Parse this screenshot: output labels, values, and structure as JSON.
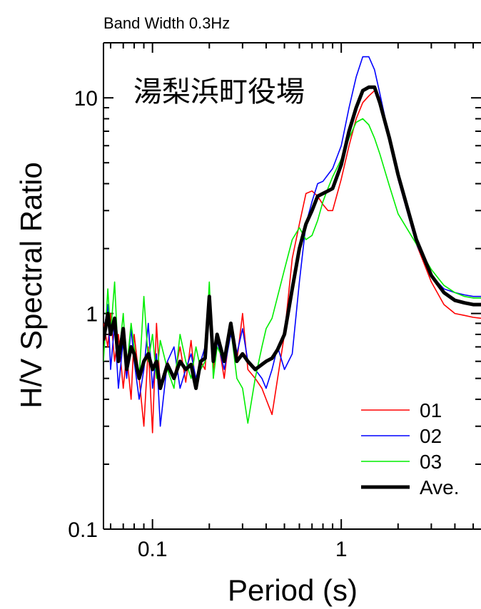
{
  "chart_data": {
    "type": "line",
    "subtitle": "Band Width 0.3Hz",
    "title": "湯梨浜町役場",
    "xlabel": "Period (s)",
    "ylabel": "H/V Spectral Ratio",
    "x_scale": "log",
    "y_scale": "log",
    "xlim": [
      0.055,
      5.5
    ],
    "ylim": [
      0.1,
      18
    ],
    "x_ticks": [
      0.1,
      1
    ],
    "x_tick_labels": [
      "0.1",
      "1"
    ],
    "y_ticks": [
      0.1,
      1,
      10
    ],
    "y_tick_labels": [
      "0.1",
      "1",
      "10"
    ],
    "grid": false,
    "legend": {
      "placement": "bottom-right"
    },
    "series": [
      {
        "name": "01",
        "color": "#ff0000",
        "x": [
          0.055,
          0.058,
          0.06,
          0.063,
          0.066,
          0.07,
          0.073,
          0.077,
          0.08,
          0.085,
          0.09,
          0.095,
          0.1,
          0.105,
          0.11,
          0.12,
          0.13,
          0.14,
          0.15,
          0.16,
          0.17,
          0.18,
          0.19,
          0.2,
          0.21,
          0.22,
          0.24,
          0.26,
          0.28,
          0.3,
          0.32,
          0.35,
          0.38,
          0.4,
          0.43,
          0.46,
          0.5,
          0.55,
          0.6,
          0.65,
          0.7,
          0.75,
          0.8,
          0.85,
          0.9,
          1.0,
          1.1,
          1.2,
          1.3,
          1.4,
          1.5,
          1.6,
          1.8,
          2.0,
          2.5,
          3.0,
          3.5,
          4.0,
          4.5,
          5.0,
          5.5
        ],
        "y": [
          0.9,
          0.7,
          1.0,
          0.6,
          0.8,
          0.45,
          0.65,
          0.4,
          0.8,
          0.5,
          0.3,
          0.7,
          0.28,
          0.9,
          0.45,
          0.6,
          0.5,
          0.7,
          0.48,
          0.75,
          0.45,
          0.6,
          0.55,
          1.2,
          0.55,
          0.8,
          0.5,
          0.9,
          0.6,
          1.0,
          0.55,
          0.5,
          0.45,
          0.4,
          0.34,
          0.5,
          0.8,
          1.8,
          2.6,
          3.6,
          3.7,
          3.5,
          3.2,
          3.0,
          3.0,
          4.2,
          6.0,
          8.0,
          9.5,
          10.2,
          10.8,
          10.0,
          6.5,
          4.2,
          2.1,
          1.4,
          1.1,
          1.0,
          0.98,
          0.96,
          0.95
        ]
      },
      {
        "name": "02",
        "color": "#0000ff",
        "x": [
          0.055,
          0.058,
          0.06,
          0.063,
          0.066,
          0.07,
          0.073,
          0.077,
          0.08,
          0.085,
          0.09,
          0.095,
          0.1,
          0.105,
          0.11,
          0.12,
          0.13,
          0.14,
          0.15,
          0.16,
          0.17,
          0.18,
          0.19,
          0.2,
          0.21,
          0.22,
          0.24,
          0.26,
          0.28,
          0.3,
          0.32,
          0.35,
          0.38,
          0.4,
          0.43,
          0.46,
          0.5,
          0.55,
          0.6,
          0.65,
          0.7,
          0.75,
          0.8,
          0.85,
          0.9,
          1.0,
          1.1,
          1.2,
          1.3,
          1.4,
          1.5,
          1.6,
          1.8,
          2.0,
          2.5,
          3.0,
          3.5,
          4.0,
          4.5,
          5.0,
          5.5
        ],
        "y": [
          0.8,
          1.1,
          0.55,
          0.9,
          0.45,
          0.75,
          0.5,
          0.85,
          0.6,
          0.4,
          0.55,
          0.9,
          0.45,
          0.65,
          0.3,
          0.6,
          0.7,
          0.45,
          0.55,
          0.65,
          0.5,
          0.6,
          0.7,
          1.1,
          0.6,
          0.75,
          0.55,
          0.8,
          0.65,
          0.85,
          0.6,
          0.55,
          0.5,
          0.45,
          0.55,
          0.7,
          0.55,
          0.65,
          1.4,
          2.6,
          3.3,
          4.0,
          4.1,
          4.4,
          4.7,
          6.0,
          9.0,
          12.5,
          15.5,
          15.5,
          13.5,
          10.5,
          6.5,
          4.2,
          2.1,
          1.5,
          1.3,
          1.25,
          1.22,
          1.2,
          1.2
        ]
      },
      {
        "name": "03",
        "color": "#00ee00",
        "x": [
          0.055,
          0.058,
          0.06,
          0.063,
          0.066,
          0.07,
          0.073,
          0.077,
          0.08,
          0.085,
          0.09,
          0.095,
          0.1,
          0.105,
          0.11,
          0.12,
          0.13,
          0.14,
          0.15,
          0.16,
          0.17,
          0.18,
          0.19,
          0.2,
          0.21,
          0.22,
          0.24,
          0.26,
          0.28,
          0.3,
          0.32,
          0.35,
          0.38,
          0.4,
          0.43,
          0.46,
          0.5,
          0.55,
          0.6,
          0.65,
          0.7,
          0.75,
          0.8,
          0.85,
          0.9,
          1.0,
          1.1,
          1.2,
          1.3,
          1.4,
          1.5,
          1.6,
          1.8,
          2.0,
          2.5,
          3.0,
          3.5,
          4.0,
          4.5,
          5.0,
          5.5
        ],
        "y": [
          0.6,
          1.3,
          0.8,
          1.4,
          0.6,
          1.0,
          0.55,
          0.9,
          0.7,
          0.5,
          1.2,
          0.6,
          0.8,
          0.5,
          0.75,
          0.55,
          0.45,
          0.8,
          0.6,
          0.5,
          0.7,
          0.55,
          0.6,
          1.4,
          0.5,
          0.7,
          0.6,
          0.85,
          0.5,
          0.45,
          0.31,
          0.5,
          0.7,
          0.85,
          0.95,
          1.2,
          1.6,
          2.2,
          2.5,
          2.2,
          2.3,
          2.7,
          3.3,
          3.8,
          4.3,
          5.2,
          6.5,
          7.7,
          8.0,
          7.5,
          6.5,
          5.5,
          3.9,
          2.9,
          2.1,
          1.6,
          1.35,
          1.25,
          1.2,
          1.18,
          1.18
        ]
      },
      {
        "name": "Ave.",
        "color": "#000000",
        "x": [
          0.055,
          0.058,
          0.06,
          0.063,
          0.066,
          0.07,
          0.073,
          0.077,
          0.08,
          0.085,
          0.09,
          0.095,
          0.1,
          0.105,
          0.11,
          0.12,
          0.13,
          0.14,
          0.15,
          0.16,
          0.17,
          0.18,
          0.19,
          0.2,
          0.21,
          0.22,
          0.24,
          0.26,
          0.28,
          0.3,
          0.32,
          0.35,
          0.38,
          0.4,
          0.43,
          0.46,
          0.5,
          0.55,
          0.6,
          0.65,
          0.7,
          0.75,
          0.8,
          0.85,
          0.9,
          1.0,
          1.1,
          1.2,
          1.3,
          1.4,
          1.5,
          1.6,
          1.8,
          2.0,
          2.5,
          3.0,
          3.5,
          4.0,
          4.5,
          5.0,
          5.5
        ],
        "y": [
          0.75,
          1.0,
          0.8,
          0.95,
          0.6,
          0.85,
          0.55,
          0.7,
          0.65,
          0.5,
          0.6,
          0.65,
          0.55,
          0.6,
          0.45,
          0.58,
          0.5,
          0.6,
          0.55,
          0.58,
          0.45,
          0.6,
          0.62,
          1.2,
          0.6,
          0.8,
          0.6,
          0.9,
          0.6,
          0.65,
          0.6,
          0.55,
          0.58,
          0.6,
          0.62,
          0.68,
          0.8,
          1.3,
          2.0,
          2.6,
          3.0,
          3.5,
          3.6,
          3.7,
          3.8,
          4.9,
          7.0,
          9.0,
          10.8,
          11.2,
          11.2,
          9.5,
          6.5,
          4.4,
          2.2,
          1.5,
          1.25,
          1.15,
          1.12,
          1.1,
          1.1
        ]
      }
    ]
  }
}
